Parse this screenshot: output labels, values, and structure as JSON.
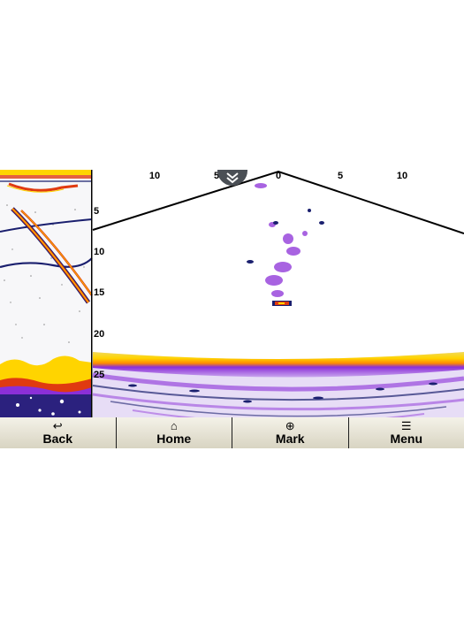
{
  "sonar": {
    "depth_scale": [
      "5",
      "10",
      "15",
      "20",
      "25"
    ],
    "range_scale": [
      "10",
      "5",
      "0",
      "5",
      "10"
    ],
    "collapse_icon": "chevron-down-icon"
  },
  "softkeys": [
    {
      "label": "Back",
      "icon": "back-arrow-icon",
      "glyph": "↩"
    },
    {
      "label": "Home",
      "icon": "home-icon",
      "glyph": "⌂"
    },
    {
      "label": "Mark",
      "icon": "waypoint-mark-icon",
      "glyph": "⊕"
    },
    {
      "label": "Menu",
      "icon": "menu-icon",
      "glyph": "☰"
    }
  ],
  "colors": {
    "bottom_return": "#ffd400",
    "strong_return": "#e03a10",
    "mid_return": "#8b2fd8",
    "weak_return": "#c9a6ee",
    "dark_return": "#1a1f6e"
  }
}
